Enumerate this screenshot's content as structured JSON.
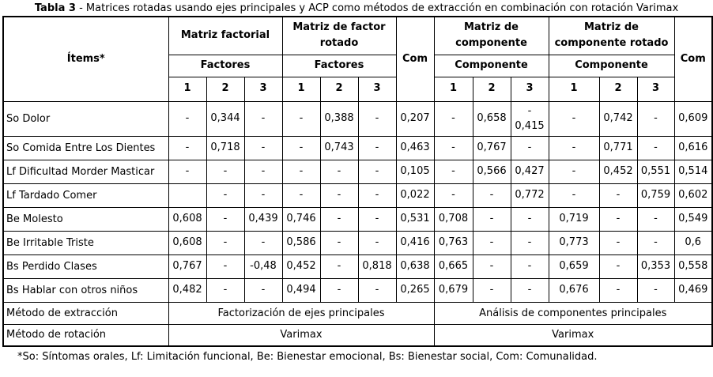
{
  "title": {
    "bold": "Tabla 3",
    "rest": " - Matrices rotadas usando ejes principales y ACP como métodos de extracción en combinación con rotación Varimax"
  },
  "table": {
    "items_header": "Ítems*",
    "com_header": "Com",
    "groups": [
      {
        "label": "Matriz factorial",
        "sub": "Factores"
      },
      {
        "label": "Matriz de factor rotado",
        "sub": "Factores"
      },
      {
        "label": "Matriz de componente",
        "sub": "Componente"
      },
      {
        "label": "Matriz de componente rotado",
        "sub": "Componente"
      }
    ],
    "numbers": [
      "1",
      "2",
      "3"
    ],
    "rows": [
      {
        "item": "So Dolor",
        "values": [
          "-",
          "0,344",
          "-",
          "-",
          "0,388",
          "-",
          "0,207",
          "-",
          "0,658",
          "-\n0,415",
          "-",
          "0,742",
          "-",
          "0,609"
        ]
      },
      {
        "item": "So Comida Entre Los Dientes",
        "values": [
          "-",
          "0,718",
          "-",
          "-",
          "0,743",
          "-",
          "0,463",
          "-",
          "0,767",
          "-",
          "-",
          "0,771",
          "-",
          "0,616"
        ]
      },
      {
        "item": "Lf Dificultad Morder Masticar",
        "values": [
          "-",
          "-",
          "-",
          "-",
          "-",
          "-",
          "0,105",
          "-",
          "0,566",
          "0,427",
          "-",
          "0,452",
          "0,551",
          "0,514"
        ]
      },
      {
        "item": "Lf Tardado Comer",
        "values": [
          "",
          "-",
          "-",
          "-",
          "-",
          "-",
          "0,022",
          "-",
          "-",
          "0,772",
          "-",
          "-",
          "0,759",
          "0,602"
        ]
      },
      {
        "item": "Be Molesto",
        "values": [
          "0,608",
          "-",
          "0,439",
          "0,746",
          "-",
          "-",
          "0,531",
          "0,708",
          "-",
          "-",
          "0,719",
          "-",
          "-",
          "0,549"
        ]
      },
      {
        "item": "Be Irritable Triste",
        "values": [
          "0,608",
          "-",
          "-",
          "0,586",
          "-",
          "-",
          "0,416",
          "0,763",
          "-",
          "-",
          "0,773",
          "-",
          "-",
          "0,6"
        ]
      },
      {
        "item": "Bs Perdido Clases",
        "values": [
          "0,767",
          "-",
          "-0,48",
          "0,452",
          "-",
          "0,818",
          "0,638",
          "0,665",
          "-",
          "-",
          "0,659",
          "-",
          "0,353",
          "0,558"
        ]
      },
      {
        "item": "Bs Hablar con otros niños",
        "values": [
          "0,482",
          "-",
          "-",
          "0,494",
          "-",
          "-",
          "0,265",
          "0,679",
          "-",
          "-",
          "0,676",
          "-",
          "-",
          "0,469"
        ]
      }
    ],
    "footer_rows": [
      {
        "label": "Método de extracción",
        "left": "Factorización de ejes principales",
        "right": "Análisis de componentes principales"
      },
      {
        "label": "Método de rotación",
        "left": "Varimax",
        "right": "Varimax"
      }
    ]
  },
  "footnote": "*So: Síntomas orales, Lf: Limitación funcional, Be: Bienestar emocional, Bs: Bienestar social, Com: Comunalidad."
}
